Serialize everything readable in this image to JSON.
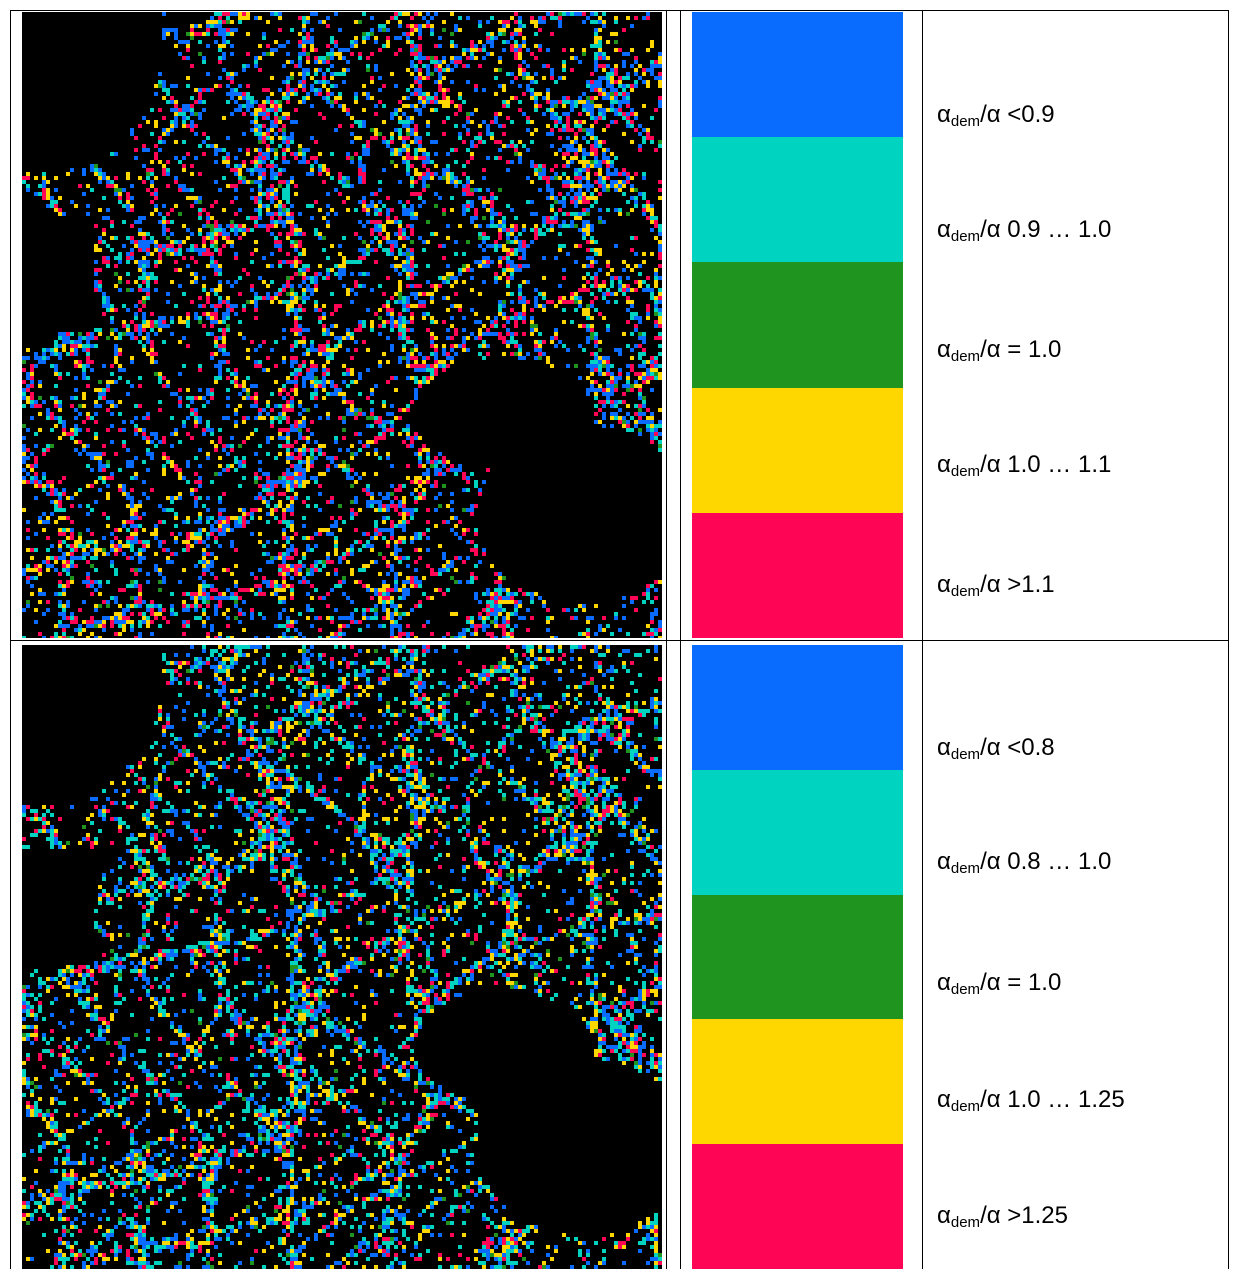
{
  "rows": [
    {
      "legend": [
        {
          "color": "#0a6cff",
          "label": {
            "symbol": "α",
            "sub": "dem",
            "text": "/α <0.9"
          }
        },
        {
          "color": "#00d3bf",
          "label": {
            "symbol": "α",
            "sub": "dem",
            "text": "/α 0.9 … 1.0"
          }
        },
        {
          "color": "#1f951f",
          "label": {
            "symbol": "α",
            "sub": "dem",
            "text": "/α = 1.0"
          }
        },
        {
          "color": "#ffd700",
          "label": {
            "symbol": "α",
            "sub": "dem",
            "text": "/α 1.0 … 1.1"
          }
        },
        {
          "color": "#ff0555",
          "label": {
            "symbol": "α",
            "sub": "dem",
            "text": "/α >1.1"
          }
        }
      ]
    },
    {
      "legend": [
        {
          "color": "#0a6cff",
          "label": {
            "symbol": "α",
            "sub": "dem",
            "text": "/α <0.8"
          }
        },
        {
          "color": "#00d3bf",
          "label": {
            "symbol": "α",
            "sub": "dem",
            "text": "/α 0.8 … 1.0"
          }
        },
        {
          "color": "#1f951f",
          "label": {
            "symbol": "α",
            "sub": "dem",
            "text": "/α = 1.0"
          }
        },
        {
          "color": "#ffd700",
          "label": {
            "symbol": "α",
            "sub": "dem",
            "text": "/α 1.0 … 1.25"
          }
        },
        {
          "color": "#ff0555",
          "label": {
            "symbol": "α",
            "sub": "dem",
            "text": "/α >1.25"
          }
        }
      ]
    }
  ]
}
